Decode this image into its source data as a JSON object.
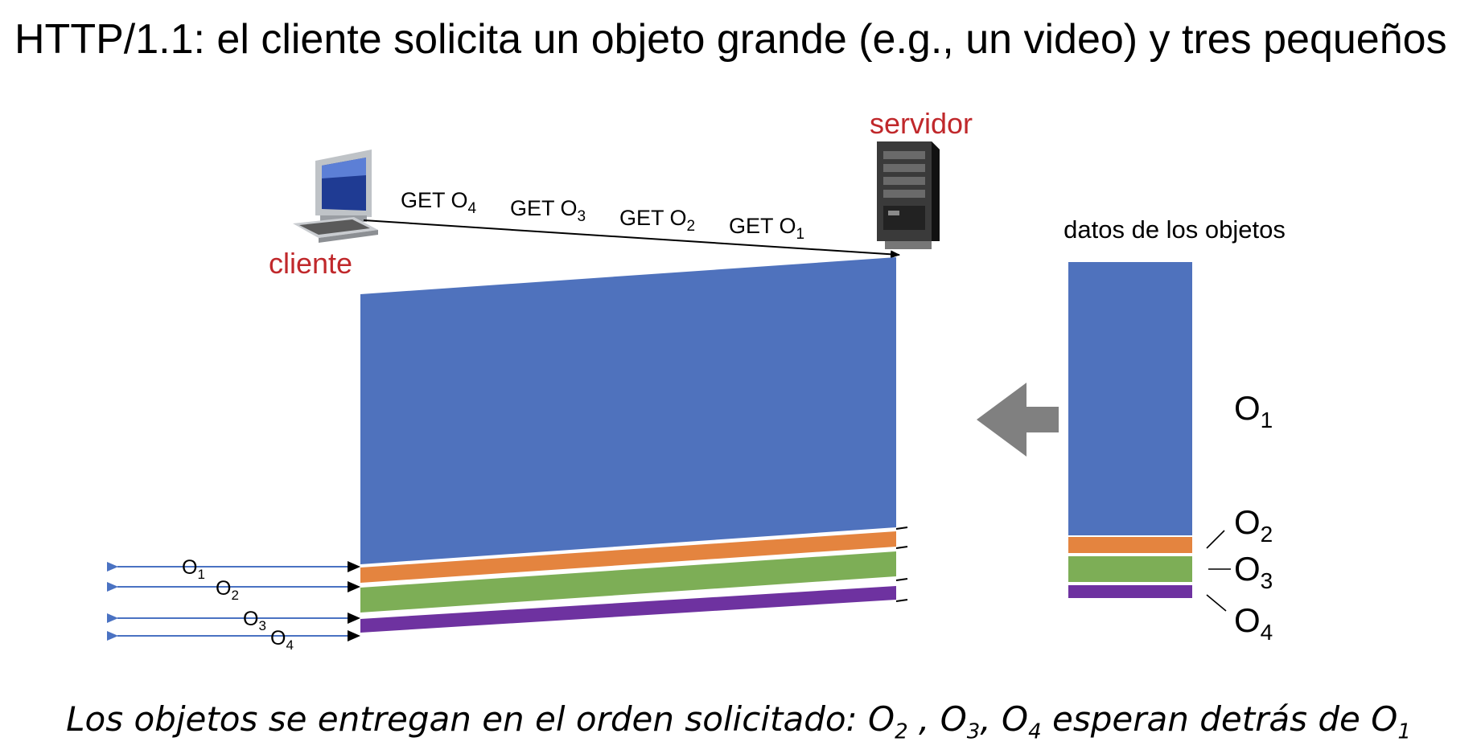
{
  "title": "HTTP/1.1: el cliente solicita un objeto grande (e.g., un video) y tres pequeños",
  "labels": {
    "server": "servidor",
    "client": "cliente",
    "data_heading": "datos de los objetos"
  },
  "requests": [
    {
      "text": "GET O",
      "sub": "4"
    },
    {
      "text": "GET O",
      "sub": "3"
    },
    {
      "text": "GET O",
      "sub": "2"
    },
    {
      "text": "GET O",
      "sub": "1"
    }
  ],
  "objects": [
    {
      "name": "O",
      "sub": "1",
      "color": "#4f72bd"
    },
    {
      "name": "O",
      "sub": "2",
      "color": "#e4843f"
    },
    {
      "name": "O",
      "sub": "3",
      "color": "#7dae56"
    },
    {
      "name": "O",
      "sub": "4",
      "color": "#6e32a0"
    }
  ],
  "caption": {
    "prefix": "Los objetos se entregan en el orden solicitado: O",
    "s2": "2",
    "sep1": " , O",
    "s3": "3",
    "sep2": ", O",
    "s4": "4",
    "mid": " esperan detrás de O",
    "s1": "1"
  },
  "colors": {
    "accent_red": "#c0282b",
    "arrow_blue": "#4a72c2",
    "gray_arrow": "#808080"
  }
}
